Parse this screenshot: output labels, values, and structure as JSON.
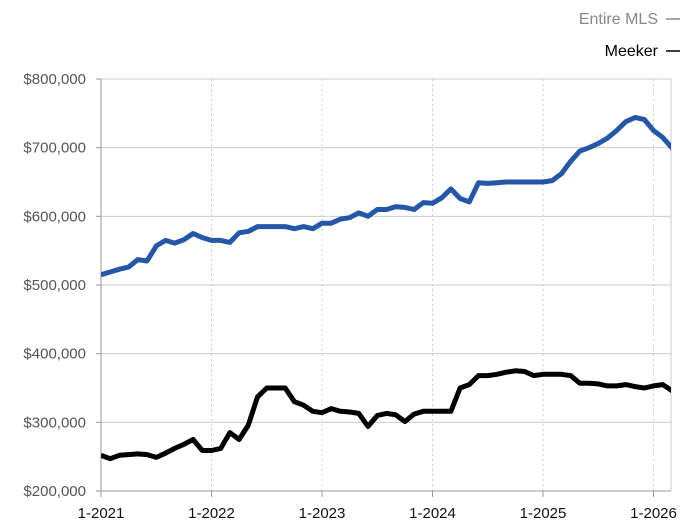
{
  "chart_data": {
    "type": "line",
    "title": "",
    "xlabel": "",
    "ylabel": "",
    "x_tick_labels": [
      "1-2021",
      "1-2022",
      "1-2023",
      "1-2024",
      "1-2025",
      "1-2026"
    ],
    "y_tick_labels": [
      "$200,000",
      "$300,000",
      "$400,000",
      "$500,000",
      "$600,000",
      "$700,000",
      "$800,000"
    ],
    "y_ticks": [
      200000,
      300000,
      400000,
      500000,
      600000,
      700000,
      800000
    ],
    "ylim": [
      200000,
      800000
    ],
    "xlim": [
      "2021-01",
      "2026-02"
    ],
    "grid": true,
    "legend_position": "top-right",
    "series": [
      {
        "name": "Entire MLS",
        "color": "#2457a8",
        "legend_color": "#888888",
        "points": [
          [
            "2021-01",
            515000
          ],
          [
            "2021-02",
            519000
          ],
          [
            "2021-03",
            523000
          ],
          [
            "2021-04",
            526000
          ],
          [
            "2021-05",
            537000
          ],
          [
            "2021-06",
            535000
          ],
          [
            "2021-07",
            557000
          ],
          [
            "2021-08",
            565000
          ],
          [
            "2021-09",
            561000
          ],
          [
            "2021-10",
            566000
          ],
          [
            "2021-11",
            575000
          ],
          [
            "2021-12",
            569000
          ],
          [
            "2022-01",
            565000
          ],
          [
            "2022-02",
            565000
          ],
          [
            "2022-03",
            562000
          ],
          [
            "2022-04",
            576000
          ],
          [
            "2022-05",
            578000
          ],
          [
            "2022-06",
            585000
          ],
          [
            "2022-07",
            585000
          ],
          [
            "2022-08",
            585000
          ],
          [
            "2022-09",
            585000
          ],
          [
            "2022-10",
            582000
          ],
          [
            "2022-11",
            585000
          ],
          [
            "2022-12",
            582000
          ],
          [
            "2023-01",
            590000
          ],
          [
            "2023-02",
            590000
          ],
          [
            "2023-03",
            596000
          ],
          [
            "2023-04",
            598000
          ],
          [
            "2023-05",
            605000
          ],
          [
            "2023-06",
            600000
          ],
          [
            "2023-07",
            610000
          ],
          [
            "2023-08",
            610000
          ],
          [
            "2023-09",
            614000
          ],
          [
            "2023-10",
            613000
          ],
          [
            "2023-11",
            610000
          ],
          [
            "2023-12",
            620000
          ],
          [
            "2024-01",
            619000
          ],
          [
            "2024-02",
            627000
          ],
          [
            "2024-03",
            640000
          ],
          [
            "2024-04",
            626000
          ],
          [
            "2024-05",
            621000
          ],
          [
            "2024-06",
            649000
          ],
          [
            "2024-07",
            648000
          ],
          [
            "2024-08",
            649000
          ],
          [
            "2024-09",
            650000
          ],
          [
            "2024-10",
            650000
          ],
          [
            "2024-11",
            650000
          ],
          [
            "2024-12",
            650000
          ],
          [
            "2025-01",
            650000
          ],
          [
            "2025-02",
            652000
          ],
          [
            "2025-03",
            662000
          ],
          [
            "2025-04",
            680000
          ],
          [
            "2025-05",
            695000
          ],
          [
            "2025-06",
            700000
          ],
          [
            "2025-07",
            706000
          ],
          [
            "2025-08",
            714000
          ],
          [
            "2025-09",
            725000
          ],
          [
            "2025-10",
            738000
          ],
          [
            "2025-11",
            744000
          ],
          [
            "2025-12",
            741000
          ],
          [
            "2026-01",
            725000
          ],
          [
            "2026-02",
            715000
          ],
          [
            "2026-03",
            700000
          ],
          [
            "2026-04",
            690000
          ]
        ]
      },
      {
        "name": "Meeker",
        "color": "#000000",
        "legend_color": "#000000",
        "points": [
          [
            "2021-01",
            252000
          ],
          [
            "2021-02",
            247000
          ],
          [
            "2021-03",
            252000
          ],
          [
            "2021-04",
            253000
          ],
          [
            "2021-05",
            254000
          ],
          [
            "2021-06",
            253000
          ],
          [
            "2021-07",
            249000
          ],
          [
            "2021-08",
            255000
          ],
          [
            "2021-09",
            262000
          ],
          [
            "2021-10",
            268000
          ],
          [
            "2021-11",
            275000
          ],
          [
            "2021-12",
            259000
          ],
          [
            "2022-01",
            259000
          ],
          [
            "2022-02",
            262000
          ],
          [
            "2022-03",
            285000
          ],
          [
            "2022-04",
            275000
          ],
          [
            "2022-05",
            296000
          ],
          [
            "2022-06",
            337000
          ],
          [
            "2022-07",
            350000
          ],
          [
            "2022-08",
            350000
          ],
          [
            "2022-09",
            350000
          ],
          [
            "2022-10",
            330000
          ],
          [
            "2022-11",
            325000
          ],
          [
            "2022-12",
            316000
          ],
          [
            "2023-01",
            314000
          ],
          [
            "2023-02",
            320000
          ],
          [
            "2023-03",
            316000
          ],
          [
            "2023-04",
            315000
          ],
          [
            "2023-05",
            313000
          ],
          [
            "2023-06",
            294000
          ],
          [
            "2023-07",
            310000
          ],
          [
            "2023-08",
            313000
          ],
          [
            "2023-09",
            311000
          ],
          [
            "2023-10",
            301000
          ],
          [
            "2023-11",
            312000
          ],
          [
            "2023-12",
            316000
          ],
          [
            "2024-01",
            316000
          ],
          [
            "2024-02",
            316000
          ],
          [
            "2024-03",
            316000
          ],
          [
            "2024-04",
            350000
          ],
          [
            "2024-05",
            355000
          ],
          [
            "2024-06",
            368000
          ],
          [
            "2024-07",
            368000
          ],
          [
            "2024-08",
            370000
          ],
          [
            "2024-09",
            373000
          ],
          [
            "2024-10",
            375000
          ],
          [
            "2024-11",
            374000
          ],
          [
            "2024-12",
            368000
          ],
          [
            "2025-01",
            370000
          ],
          [
            "2025-02",
            370000
          ],
          [
            "2025-03",
            370000
          ],
          [
            "2025-04",
            368000
          ],
          [
            "2025-05",
            357000
          ],
          [
            "2025-06",
            357000
          ],
          [
            "2025-07",
            356000
          ],
          [
            "2025-08",
            353000
          ],
          [
            "2025-09",
            353000
          ],
          [
            "2025-10",
            355000
          ],
          [
            "2025-11",
            352000
          ],
          [
            "2025-12",
            350000
          ],
          [
            "2026-01",
            353000
          ],
          [
            "2026-02",
            355000
          ],
          [
            "2026-03",
            346000
          ],
          [
            "2026-04",
            355000
          ]
        ]
      }
    ]
  }
}
